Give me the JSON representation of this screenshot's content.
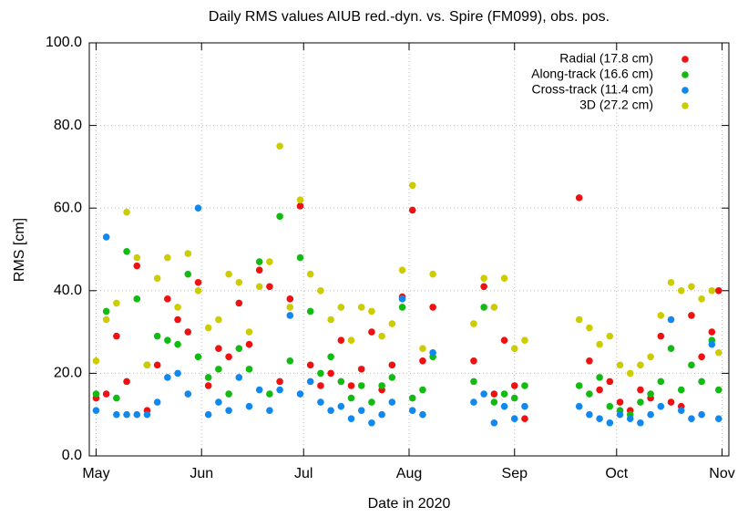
{
  "chart_data": {
    "type": "scatter",
    "title": "Daily RMS values AIUB red.-dyn. vs. Spire (FM099), obs. pos.",
    "x_label": "Date in 2020",
    "y_label": "RMS [cm]",
    "x": [
      0,
      3,
      6,
      9,
      12,
      15,
      18,
      21,
      24,
      27,
      30,
      33,
      36,
      39,
      42,
      45,
      48,
      51,
      54,
      57,
      60,
      63,
      66,
      69,
      72,
      75,
      78,
      81,
      84,
      87,
      90,
      93,
      96,
      99,
      111,
      114,
      117,
      120,
      123,
      126,
      142,
      145,
      148,
      151,
      154,
      157,
      160,
      163,
      166,
      169,
      172,
      175,
      178,
      181,
      183
    ],
    "series": [
      {
        "name": "Radial (17.8 cm)",
        "color": "#ee1111",
        "values": [
          14,
          15,
          29,
          18,
          46,
          11,
          22,
          38,
          33,
          30,
          42,
          17,
          26,
          24,
          37,
          27,
          45,
          41,
          18,
          38,
          60.5,
          22,
          17,
          20,
          28,
          17,
          21,
          30,
          16,
          22,
          38.5,
          59.5,
          23,
          36,
          23,
          41,
          15,
          28,
          17,
          9,
          62.5,
          23,
          16,
          18,
          13,
          11,
          16,
          14,
          29,
          13,
          12,
          34,
          24,
          30,
          40
        ]
      },
      {
        "name": "Along-track (16.6 cm)",
        "color": "#11bb11",
        "values": [
          15,
          35,
          14,
          49.5,
          38,
          22,
          29,
          28,
          27,
          44,
          24,
          19,
          21,
          15,
          26,
          21,
          47,
          15,
          58,
          23,
          48,
          35,
          20,
          24,
          18,
          14,
          17,
          13,
          17,
          19,
          36,
          14,
          16,
          24,
          18,
          36,
          13,
          15,
          14,
          17,
          17,
          15,
          19,
          12,
          11,
          10,
          13,
          15,
          18,
          26,
          16,
          22,
          18,
          28,
          16
        ]
      },
      {
        "name": "Cross-track (11.4 cm)",
        "color": "#1188ee",
        "values": [
          11,
          53,
          10,
          10,
          10,
          10,
          13,
          19,
          20,
          15,
          60,
          10,
          13,
          11,
          19,
          12,
          16,
          11,
          16,
          34,
          15,
          18,
          13,
          11,
          12,
          9,
          11,
          8,
          10,
          13,
          38,
          11,
          10,
          25,
          13,
          15,
          8,
          12,
          9,
          12,
          12,
          10,
          9,
          8,
          10,
          9,
          8,
          10,
          12,
          33,
          11,
          9,
          10,
          27,
          9
        ]
      },
      {
        "name": "3D (27.2 cm)",
        "color": "#cccc00",
        "values": [
          23,
          33,
          37,
          59,
          48,
          22,
          43,
          48,
          36,
          49,
          40,
          31,
          33,
          44,
          42,
          30,
          41,
          47,
          75,
          36,
          62,
          44,
          40,
          33,
          36,
          28,
          36,
          35,
          29,
          32,
          45,
          65.5,
          26,
          44,
          32,
          43,
          36,
          43,
          26,
          28,
          33,
          31,
          27,
          29,
          22,
          20,
          22,
          24,
          34,
          42,
          40,
          41,
          38,
          40,
          25
        ]
      }
    ],
    "xlim": [
      -2,
      186
    ],
    "xticks": [
      {
        "value": 0,
        "label": "May"
      },
      {
        "value": 31,
        "label": "Jun"
      },
      {
        "value": 61,
        "label": "Jul"
      },
      {
        "value": 92,
        "label": "Aug"
      },
      {
        "value": 123,
        "label": "Sep"
      },
      {
        "value": 153,
        "label": "Oct"
      },
      {
        "value": 184,
        "label": "Nov"
      }
    ],
    "ylim": [
      0,
      100
    ],
    "yticks": [
      {
        "value": 0,
        "label": "0.0"
      },
      {
        "value": 20,
        "label": "20.0"
      },
      {
        "value": 40,
        "label": "40.0"
      },
      {
        "value": 60,
        "label": "60.0"
      },
      {
        "value": 80,
        "label": "80.0"
      },
      {
        "value": 100,
        "label": "100.0"
      }
    ],
    "grid": true,
    "legend": "top-right"
  }
}
